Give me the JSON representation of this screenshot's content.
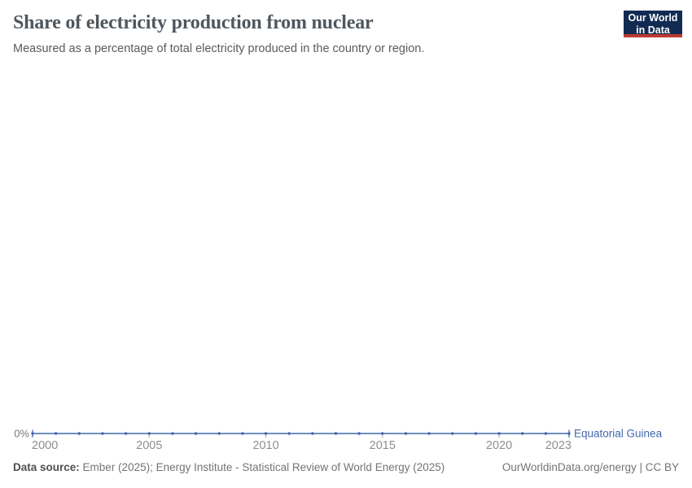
{
  "header": {
    "title": "Share of electricity production from nuclear",
    "subtitle": "Measured as a percentage of total electricity produced in the country or region."
  },
  "logo": {
    "line1": "Our World",
    "line2": "in Data",
    "bg_color": "#122b52",
    "accent_color": "#bc3a32"
  },
  "chart_data": {
    "type": "line",
    "title": "Share of electricity production from nuclear",
    "subtitle": "Measured as a percentage of total electricity produced in the country or region.",
    "x": [
      2000,
      2001,
      2002,
      2003,
      2004,
      2005,
      2006,
      2007,
      2008,
      2009,
      2010,
      2011,
      2012,
      2013,
      2014,
      2015,
      2016,
      2017,
      2018,
      2019,
      2020,
      2021,
      2022,
      2023
    ],
    "series": [
      {
        "name": "Equatorial Guinea",
        "color": "#4268ab",
        "values": [
          0,
          0,
          0,
          0,
          0,
          0,
          0,
          0,
          0,
          0,
          0,
          0,
          0,
          0,
          0,
          0,
          0,
          0,
          0,
          0,
          0,
          0,
          0,
          0
        ]
      }
    ],
    "x_ticks": [
      2000,
      2005,
      2010,
      2015,
      2020,
      2023
    ],
    "x_range": [
      2000,
      2023
    ],
    "y_ticks": [
      {
        "value": 0,
        "label": "0%"
      }
    ],
    "grid": false,
    "legend_position": "end-of-line"
  },
  "footer": {
    "source_label": "Data source:",
    "source_text": "Ember (2025); Energy Institute - Statistical Review of World Energy (2025)",
    "rights": "OurWorldinData.org/energy | CC BY"
  }
}
